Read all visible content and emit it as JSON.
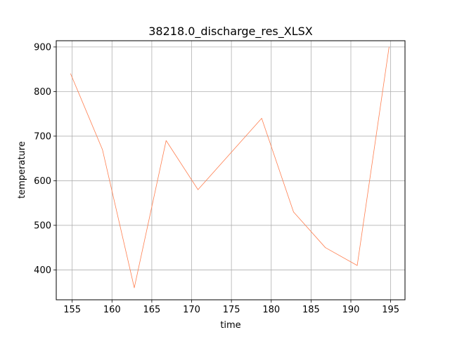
{
  "chart_data": {
    "type": "line",
    "title": "38218.0_discharge_res_XLSX",
    "xlabel": "time",
    "ylabel": "temperature",
    "xlim": [
      153.0,
      196.8
    ],
    "ylim": [
      333,
      914
    ],
    "xticks": [
      155,
      160,
      165,
      170,
      175,
      180,
      185,
      190,
      195
    ],
    "yticks": [
      400,
      500,
      600,
      700,
      800,
      900
    ],
    "grid": true,
    "series": [
      {
        "color": "#ff7f50",
        "x": [
          154.8,
          158.8,
          162.8,
          166.8,
          170.8,
          178.8,
          182.8,
          186.8,
          190.8,
          194.8
        ],
        "y": [
          840,
          670,
          360,
          690,
          580,
          740,
          530,
          450,
          410,
          900
        ]
      }
    ]
  }
}
